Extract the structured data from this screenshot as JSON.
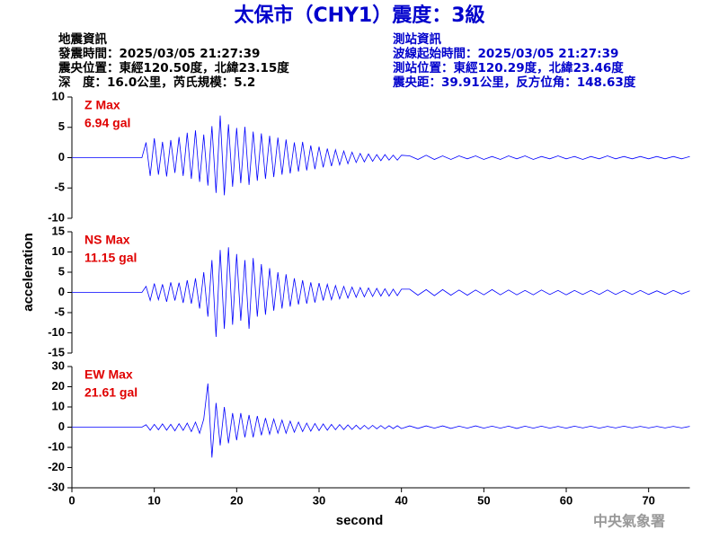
{
  "title": "太保市（CHY1）震度：3級",
  "info_left": [
    "地震資訊",
    "發震時間：2025/03/05 21:27:39",
    "震央位置：東經120.50度，北緯23.15度",
    "深　度：16.0公里，芮氏規模：5.2"
  ],
  "info_right": [
    "測站資訊",
    "波線起始時間：2025/03/05 21:27:39",
    "測站位置：東經120.29度，北緯23.46度",
    "震央距：39.91公里，反方位角：148.63度"
  ],
  "footer": "中央氣象署",
  "chart_data": [
    {
      "type": "line",
      "annotations": [
        "Z Max",
        "6.94 gal"
      ],
      "xlim": [
        0,
        75
      ],
      "ylim": [
        -10,
        10
      ],
      "yticks": [
        -10,
        -5,
        0,
        5,
        10
      ],
      "x": [
        0,
        8.5,
        9,
        9.5,
        10,
        10.5,
        11,
        11.5,
        12,
        12.5,
        13,
        13.5,
        14,
        14.5,
        15,
        15.5,
        16,
        16.5,
        17,
        17.5,
        18,
        18.5,
        19,
        19.5,
        20,
        20.5,
        21,
        21.5,
        22,
        22.5,
        23,
        23.5,
        24,
        24.5,
        25,
        25.5,
        26,
        26.5,
        27,
        27.5,
        28,
        28.5,
        29,
        29.5,
        30,
        30.5,
        31,
        31.5,
        32,
        32.5,
        33,
        33.5,
        34,
        34.5,
        35,
        35.5,
        36,
        36.5,
        37,
        37.5,
        38,
        38.5,
        39,
        39.5,
        40,
        41,
        42,
        43,
        44,
        45,
        46,
        47,
        48,
        49,
        50,
        51,
        52,
        53,
        54,
        55,
        56,
        57,
        58,
        59,
        60,
        61,
        62,
        63,
        64,
        65,
        66,
        67,
        68,
        69,
        70,
        71,
        72,
        73,
        74,
        75
      ],
      "series": [
        {
          "color": "#0000ff",
          "values": [
            0,
            0,
            2.5,
            -3,
            3.2,
            -2.8,
            2.6,
            -3.1,
            2.9,
            -2.5,
            3.4,
            -3,
            4.1,
            -3.5,
            4.5,
            -4,
            3.8,
            -4.6,
            5.2,
            -5.8,
            6.94,
            -6.2,
            5.5,
            -4.8,
            4.9,
            -4.2,
            5.1,
            -4.5,
            4.3,
            -3.8,
            4,
            -3.5,
            3.6,
            -3.2,
            3.3,
            -2.8,
            3,
            -2.6,
            2.5,
            -2.3,
            2.6,
            -2.1,
            2,
            -1.9,
            1.8,
            -1.6,
            1.5,
            -1.4,
            1.3,
            -1.2,
            1.1,
            -1,
            0.9,
            -0.8,
            0.7,
            -0.7,
            0.6,
            -0.6,
            0.5,
            -0.5,
            0.5,
            -0.4,
            0.4,
            -0.4,
            0.4,
            0.3,
            -0.3,
            0.4,
            -0.3,
            0.3,
            -0.3,
            0.3,
            -0.2,
            0.3,
            -0.3,
            0.2,
            -0.3,
            0.3,
            -0.2,
            0.3,
            -0.3,
            0.2,
            -0.2,
            0.3,
            -0.2,
            0.2,
            -0.3,
            0.2,
            -0.2,
            0.3,
            -0.2,
            0.2,
            -0.2,
            0.2,
            -0.2,
            0.2,
            -0.2,
            0.2,
            -0.2,
            0.2
          ]
        }
      ]
    },
    {
      "type": "line",
      "annotations": [
        "NS Max",
        "11.15 gal"
      ],
      "ylabel": "acceleration",
      "xlim": [
        0,
        75
      ],
      "ylim": [
        -15,
        15
      ],
      "yticks": [
        -15,
        -10,
        -5,
        0,
        5,
        10,
        15
      ],
      "x": [
        0,
        8.5,
        9,
        9.5,
        10,
        10.5,
        11,
        11.5,
        12,
        12.5,
        13,
        13.5,
        14,
        14.5,
        15,
        15.5,
        16,
        16.5,
        17,
        17.5,
        18,
        18.5,
        19,
        19.5,
        20,
        20.5,
        21,
        21.5,
        22,
        22.5,
        23,
        23.5,
        24,
        24.5,
        25,
        25.5,
        26,
        26.5,
        27,
        27.5,
        28,
        28.5,
        29,
        29.5,
        30,
        30.5,
        31,
        31.5,
        32,
        32.5,
        33,
        33.5,
        34,
        34.5,
        35,
        35.5,
        36,
        36.5,
        37,
        37.5,
        38,
        38.5,
        39,
        39.5,
        40,
        41,
        42,
        43,
        44,
        45,
        46,
        47,
        48,
        49,
        50,
        51,
        52,
        53,
        54,
        55,
        56,
        57,
        58,
        59,
        60,
        61,
        62,
        63,
        64,
        65,
        66,
        67,
        68,
        69,
        70,
        71,
        72,
        73,
        74,
        75
      ],
      "series": [
        {
          "color": "#0000ff",
          "values": [
            0,
            0,
            1.5,
            -2,
            2.2,
            -1.8,
            2,
            -2.3,
            2.5,
            -2,
            2.4,
            -2.6,
            3,
            -2.8,
            3.5,
            -4,
            5,
            -6,
            8,
            -11,
            10.5,
            -9,
            11.15,
            -8,
            9.5,
            -7,
            8,
            -9,
            8.5,
            -6,
            7,
            -5.5,
            6,
            -4.5,
            5,
            -4,
            4.5,
            -3.5,
            3.5,
            -3,
            3,
            -2.8,
            2.5,
            -2.5,
            2.3,
            -2,
            2,
            -1.8,
            1.7,
            -1.6,
            1.5,
            -1.4,
            1.3,
            -1.2,
            1.2,
            -1.1,
            1.1,
            -1,
            1,
            -0.9,
            0.9,
            -0.9,
            0.8,
            -0.8,
            0.8,
            0.8,
            -0.7,
            0.7,
            -0.8,
            0.7,
            -0.7,
            0.6,
            -0.7,
            0.6,
            -0.6,
            0.7,
            -0.6,
            0.6,
            -0.6,
            0.5,
            -0.6,
            0.6,
            -0.5,
            0.5,
            -0.6,
            0.5,
            -0.5,
            0.5,
            -0.5,
            0.6,
            -0.5,
            0.5,
            -0.5,
            0.5,
            -0.5,
            0.4,
            -0.5,
            0.5,
            -0.4,
            0.4
          ]
        }
      ]
    },
    {
      "type": "line",
      "annotations": [
        "EW Max",
        "21.61 gal"
      ],
      "xlabel": "second",
      "xlim": [
        0,
        75
      ],
      "xticks": [
        0,
        10,
        20,
        30,
        40,
        50,
        60,
        70
      ],
      "ylim": [
        -30,
        30
      ],
      "yticks": [
        -30,
        -20,
        -10,
        0,
        10,
        20,
        30
      ],
      "x": [
        0,
        8.5,
        9,
        9.5,
        10,
        10.5,
        11,
        11.5,
        12,
        12.5,
        13,
        13.5,
        14,
        14.5,
        15,
        15.5,
        16,
        16.5,
        17,
        17.5,
        18,
        18.5,
        19,
        19.5,
        20,
        20.5,
        21,
        21.5,
        22,
        22.5,
        23,
        23.5,
        24,
        24.5,
        25,
        25.5,
        26,
        26.5,
        27,
        27.5,
        28,
        28.5,
        29,
        29.5,
        30,
        30.5,
        31,
        31.5,
        32,
        32.5,
        33,
        33.5,
        34,
        34.5,
        35,
        35.5,
        36,
        36.5,
        37,
        37.5,
        38,
        38.5,
        39,
        39.5,
        40,
        41,
        42,
        43,
        44,
        45,
        46,
        47,
        48,
        49,
        50,
        51,
        52,
        53,
        54,
        55,
        56,
        57,
        58,
        59,
        60,
        61,
        62,
        63,
        64,
        65,
        66,
        67,
        68,
        69,
        70,
        71,
        72,
        73,
        74,
        75
      ],
      "series": [
        {
          "color": "#0000ff",
          "values": [
            0,
            0,
            1.2,
            -1.5,
            1.4,
            -1.3,
            1.6,
            -1.5,
            1.4,
            -1.8,
            1.7,
            -1.6,
            2,
            -2.2,
            2.5,
            -3,
            4,
            21.61,
            -15,
            12,
            -9,
            10,
            -8,
            7,
            -6.5,
            7,
            -5,
            6,
            -5,
            5.5,
            -4,
            4.5,
            -3.5,
            4,
            -3,
            3.5,
            -3,
            3,
            -2.5,
            2.5,
            -2.2,
            2,
            -2,
            1.8,
            -1.7,
            1.6,
            -1.5,
            1.4,
            -1.3,
            1.3,
            -1.2,
            1.1,
            -1.1,
            1,
            -1,
            0.9,
            -0.9,
            0.9,
            -0.8,
            0.8,
            -0.8,
            0.7,
            -0.7,
            0.7,
            -0.7,
            0.6,
            -0.6,
            0.6,
            -0.5,
            0.6,
            -0.6,
            0.5,
            -0.5,
            0.6,
            -0.5,
            0.5,
            -0.5,
            0.5,
            -0.6,
            0.5,
            -0.5,
            0.5,
            -0.5,
            0.4,
            -0.5,
            0.5,
            -0.4,
            0.5,
            -0.5,
            0.4,
            -0.4,
            0.5,
            -0.4,
            0.4,
            -0.4,
            0.4,
            -0.4,
            0.4,
            -0.4,
            0.4
          ]
        }
      ]
    }
  ]
}
